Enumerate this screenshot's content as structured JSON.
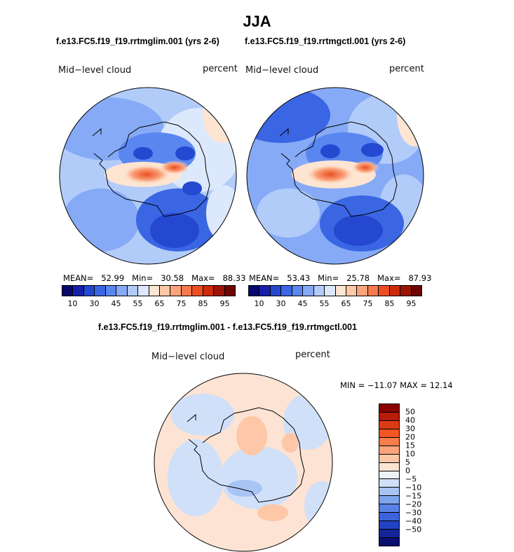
{
  "title": "JJA",
  "panel_left": {
    "case_title": "f.e13.FC5.f19_f19.rrtmglim.001 (yrs 2-6)",
    "variable": "Mid−level cloud",
    "units": "percent",
    "stats": {
      "mean_label": "MEAN=",
      "mean": "52.99",
      "min_label": "Min=",
      "min": "30.58",
      "max_label": "Max=",
      "max": "88.33"
    }
  },
  "panel_right": {
    "case_title": "f.e13.FC5.f19_f19.rrtmgctl.001 (yrs 2-6)",
    "variable": "Mid−level cloud",
    "units": "percent",
    "stats": {
      "mean_label": "MEAN=",
      "mean": "53.43",
      "min_label": "Min=",
      "min": "25.78",
      "max_label": "Max=",
      "max": "87.93"
    }
  },
  "panel_diff": {
    "case_title": "f.e13.FC5.f19_f19.rrtmglim.001 - f.e13.FC5.f19_f19.rrtmgctl.001",
    "variable": "Mid−level cloud",
    "units": "percent",
    "minmax": "MIN = −11.07 MAX =  12.14"
  },
  "abs_colorbar": {
    "colors": [
      "#08086e",
      "#1620a8",
      "#2448d0",
      "#3a66e4",
      "#5a86f0",
      "#86aaf6",
      "#b2ccfa",
      "#dce9fc",
      "#fde5d2",
      "#fcc8a8",
      "#fba47c",
      "#f77a4e",
      "#ec4e22",
      "#cc2b0b",
      "#9c1405",
      "#6c0604"
    ],
    "ticks": [
      "10",
      "30",
      "45",
      "55",
      "65",
      "75",
      "85",
      "95"
    ]
  },
  "diff_colorbar": {
    "colors": [
      "#8b0000",
      "#b81c0a",
      "#dc3a14",
      "#f25424",
      "#f97d4a",
      "#fca47c",
      "#fdc7a8",
      "#fde3d3",
      "#ecf3f8",
      "#cfe0f8",
      "#a8c4f4",
      "#7ea4ee",
      "#5a82e6",
      "#3c62dc",
      "#2242c4",
      "#14259a",
      "#0a0e6e"
    ],
    "labels": [
      "50",
      "40",
      "30",
      "20",
      "15",
      "10",
      "5",
      "0",
      "−5",
      "−10",
      "−15",
      "−20",
      "−30",
      "−40",
      "−50"
    ]
  }
}
